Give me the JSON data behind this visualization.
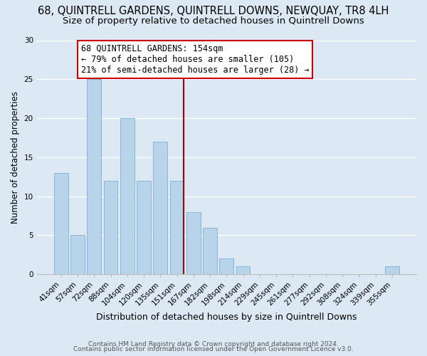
{
  "title": "68, QUINTRELL GARDENS, QUINTRELL DOWNS, NEWQUAY, TR8 4LH",
  "subtitle": "Size of property relative to detached houses in Quintrell Downs",
  "xlabel": "Distribution of detached houses by size in Quintrell Downs",
  "ylabel": "Number of detached properties",
  "bar_labels": [
    "41sqm",
    "57sqm",
    "72sqm",
    "88sqm",
    "104sqm",
    "120sqm",
    "135sqm",
    "151sqm",
    "167sqm",
    "182sqm",
    "198sqm",
    "214sqm",
    "229sqm",
    "245sqm",
    "261sqm",
    "277sqm",
    "292sqm",
    "308sqm",
    "324sqm",
    "339sqm",
    "355sqm"
  ],
  "bar_heights": [
    13,
    5,
    25,
    12,
    20,
    12,
    17,
    12,
    8,
    6,
    2,
    1,
    0,
    0,
    0,
    0,
    0,
    0,
    0,
    0,
    1
  ],
  "bar_color": "#b8d4ea",
  "bar_edge_color": "#8ab4d4",
  "vline_color": "#aa0000",
  "annotation_line1": "68 QUINTRELL GARDENS: 154sqm",
  "annotation_line2": "← 79% of detached houses are smaller (105)",
  "annotation_line3": "21% of semi-detached houses are larger (28) →",
  "annotation_box_color": "#ffffff",
  "annotation_box_edge": "#cc0000",
  "ylim": [
    0,
    30
  ],
  "yticks": [
    0,
    5,
    10,
    15,
    20,
    25,
    30
  ],
  "footer1": "Contains HM Land Registry data © Crown copyright and database right 2024.",
  "footer2": "Contains public sector information licensed under the Open Government Licence v3.0.",
  "background_color": "#dce8f4",
  "grid_color": "#c8d8ea",
  "title_fontsize": 10.5,
  "subtitle_fontsize": 9.5,
  "annotation_fontsize": 8.5,
  "ylabel_fontsize": 8.5,
  "xlabel_fontsize": 9.0,
  "tick_fontsize": 7.5,
  "footer_fontsize": 6.5
}
